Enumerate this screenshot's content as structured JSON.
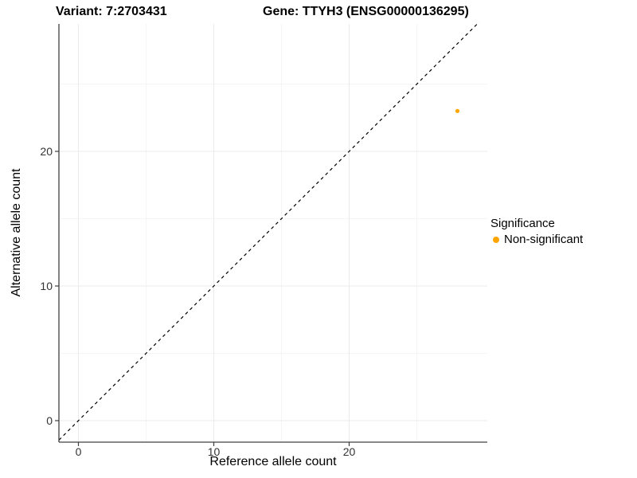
{
  "titles": {
    "variant": "Variant: 7:2703431",
    "gene": "Gene: TTYH3 (ENSG00000136295)"
  },
  "chart_data": {
    "type": "scatter",
    "title": "Variant: 7:2703431  |  Gene: TTYH3 (ENSG00000136295)",
    "xlabel": "Reference allele count",
    "ylabel": "Alternative allele count",
    "xticks": [
      0,
      10,
      20
    ],
    "yticks": [
      0,
      10,
      20
    ],
    "xminorticks": [
      5,
      15,
      25
    ],
    "yminorticks": [
      5,
      15,
      25
    ],
    "xlim": [
      -1.44,
      30.2
    ],
    "ylim": [
      -1.6,
      29.6
    ],
    "grid": true,
    "points": [
      {
        "x": 28,
        "y": 23,
        "series": "Non-significant"
      }
    ],
    "reference_line": {
      "equation": "y = x",
      "style": "dashed",
      "color": "#000000"
    },
    "legend": {
      "title": "Significance",
      "position": "right",
      "items": [
        {
          "label": "Non-significant",
          "color": "#FFA500"
        }
      ]
    }
  },
  "colors": {
    "point": "#FFA500",
    "grid_major": "#ebebeb",
    "grid_minor": "#f5f5f5",
    "axis_line": "#404040",
    "tick_text": "#333333",
    "title_text": "#000000",
    "background": "#ffffff"
  }
}
